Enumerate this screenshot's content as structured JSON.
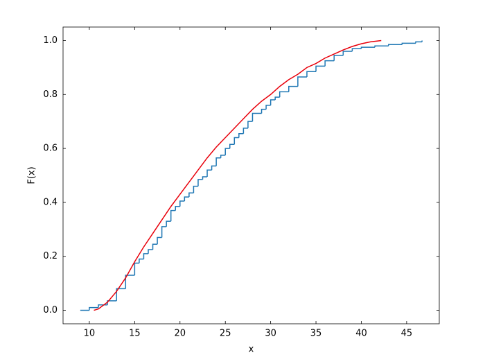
{
  "chart_data": {
    "type": "line",
    "xlabel": "x",
    "ylabel": "F(x)",
    "xlim": [
      7.1,
      48.6
    ],
    "ylim": [
      -0.05,
      1.05
    ],
    "xticks": [
      10,
      15,
      20,
      25,
      30,
      35,
      40,
      45
    ],
    "yticks": [
      {
        "value": 0,
        "label": "0.0"
      },
      0.2,
      0.4,
      0.6,
      0.8,
      {
        "value": 1,
        "label": "1.0"
      }
    ],
    "ticks_inside": true,
    "mirror_ticks": true,
    "series": [
      {
        "color": "#1f77b4",
        "step": "post",
        "x": [
          9.0,
          10.0,
          11.0,
          12.0,
          13.0,
          14.0,
          15.0,
          15.5,
          16.0,
          16.5,
          17.0,
          17.5,
          18.0,
          18.5,
          19.0,
          19.5,
          20.0,
          20.5,
          21.0,
          21.5,
          22.0,
          22.5,
          23.0,
          23.5,
          24.0,
          24.5,
          25.0,
          25.5,
          26.0,
          26.5,
          27.0,
          27.5,
          28.0,
          29.0,
          29.5,
          30.0,
          30.5,
          31.0,
          32.0,
          33.0,
          34.0,
          35.0,
          36.0,
          37.0,
          38.0,
          39.0,
          40.0,
          41.5,
          43.0,
          44.5,
          46.0,
          46.7
        ],
        "values": [
          0.0,
          0.01,
          0.02,
          0.035,
          0.08,
          0.13,
          0.175,
          0.19,
          0.21,
          0.225,
          0.245,
          0.27,
          0.31,
          0.33,
          0.37,
          0.385,
          0.405,
          0.42,
          0.435,
          0.46,
          0.485,
          0.495,
          0.52,
          0.535,
          0.565,
          0.575,
          0.6,
          0.615,
          0.64,
          0.655,
          0.675,
          0.7,
          0.73,
          0.745,
          0.76,
          0.78,
          0.79,
          0.81,
          0.83,
          0.865,
          0.885,
          0.905,
          0.925,
          0.945,
          0.96,
          0.97,
          0.975,
          0.98,
          0.985,
          0.99,
          0.995,
          1.0
        ]
      },
      {
        "color": "#e8000b",
        "x": [
          10.5,
          11,
          12,
          13,
          14,
          15,
          16,
          17,
          18,
          19,
          20,
          21,
          22,
          23,
          24,
          25,
          26,
          27,
          28,
          29,
          30,
          31,
          32,
          33,
          34,
          35,
          36,
          37,
          38,
          39,
          40,
          41,
          42.2
        ],
        "values": [
          0.0,
          0.005,
          0.03,
          0.07,
          0.12,
          0.18,
          0.235,
          0.285,
          0.335,
          0.385,
          0.43,
          0.475,
          0.52,
          0.565,
          0.605,
          0.64,
          0.675,
          0.71,
          0.745,
          0.775,
          0.8,
          0.83,
          0.855,
          0.875,
          0.9,
          0.915,
          0.935,
          0.95,
          0.965,
          0.978,
          0.988,
          0.995,
          1.0
        ]
      }
    ]
  }
}
